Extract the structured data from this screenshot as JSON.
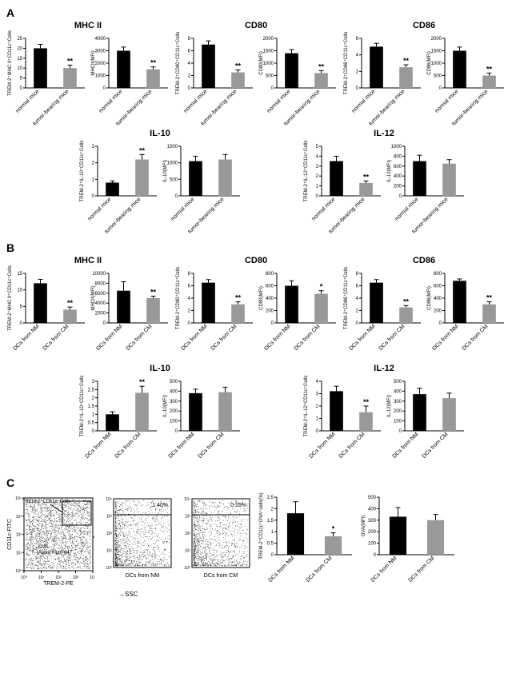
{
  "sections": {
    "A": {
      "row1": [
        {
          "title": "MHC II",
          "charts": [
            {
              "ylabel": "TREM-2⁺MHC II⁺CD11c⁺Cells",
              "ymax": 25,
              "ticks": [
                0,
                5,
                10,
                15,
                20,
                25
              ],
              "cats": [
                "normal mice",
                "tumor-bearing mice"
              ],
              "vals": [
                20,
                10
              ],
              "errs": [
                2,
                1.5
              ],
              "sigs": [
                "",
                "**"
              ],
              "colors": [
                "#000",
                "#999"
              ]
            },
            {
              "ylabel": "MHCII(MFI)",
              "ymax": 4000,
              "ticks": [
                0,
                1000,
                2000,
                3000,
                4000
              ],
              "cats": [
                "normal mice",
                "tumor-bearing mice"
              ],
              "vals": [
                3000,
                1500
              ],
              "errs": [
                300,
                200
              ],
              "sigs": [
                "",
                "**"
              ],
              "colors": [
                "#000",
                "#999"
              ]
            }
          ]
        },
        {
          "title": "CD80",
          "charts": [
            {
              "ylabel": "TREM-2⁺CD80⁺CD11c⁺Cells",
              "ymax": 8,
              "ticks": [
                0,
                2,
                4,
                6,
                8
              ],
              "cats": [
                "normal mice",
                "tumor-bearing mice"
              ],
              "vals": [
                7,
                2.5
              ],
              "errs": [
                0.6,
                0.4
              ],
              "sigs": [
                "",
                "**"
              ],
              "colors": [
                "#000",
                "#999"
              ]
            },
            {
              "ylabel": "CD80(MFI)",
              "ymax": 2000,
              "ticks": [
                0,
                500,
                1000,
                1500,
                2000
              ],
              "cats": [
                "normal mice",
                "tumor-bearing mice"
              ],
              "vals": [
                1400,
                600
              ],
              "errs": [
                150,
                100
              ],
              "sigs": [
                "",
                "**"
              ],
              "colors": [
                "#000",
                "#999"
              ]
            }
          ]
        },
        {
          "title": "CD86",
          "charts": [
            {
              "ylabel": "TREM-2⁺CD86⁺CD11c⁺Cells",
              "ymax": 6,
              "ticks": [
                0,
                2,
                4,
                6
              ],
              "cats": [
                "normal mice",
                "tumor-bearing mice"
              ],
              "vals": [
                5,
                2.5
              ],
              "errs": [
                0.4,
                0.3
              ],
              "sigs": [
                "",
                "**"
              ],
              "colors": [
                "#000",
                "#999"
              ]
            },
            {
              "ylabel": "CD86(MFI)",
              "ymax": 2000,
              "ticks": [
                0,
                500,
                1000,
                1500,
                2000
              ],
              "cats": [
                "normal mice",
                "tumor-bearing mice"
              ],
              "vals": [
                1500,
                500
              ],
              "errs": [
                150,
                100
              ],
              "sigs": [
                "",
                "**"
              ],
              "colors": [
                "#000",
                "#999"
              ]
            }
          ]
        }
      ],
      "row2": [
        {
          "title": "IL-10",
          "charts": [
            {
              "ylabel": "TREM-2⁺IL-10⁺CD11c⁺Cells",
              "ymax": 3,
              "ticks": [
                0,
                1,
                2,
                3
              ],
              "cats": [
                "normal mice",
                "tumor-bearing mice"
              ],
              "vals": [
                0.8,
                2.2
              ],
              "errs": [
                0.1,
                0.3
              ],
              "sigs": [
                "",
                "**"
              ],
              "colors": [
                "#000",
                "#999"
              ]
            },
            {
              "ylabel": "IL-10(MFI)",
              "ymax": 1500,
              "ticks": [
                0,
                500,
                1000,
                1500
              ],
              "cats": [
                "normal mice",
                "tumor-bearing mice"
              ],
              "vals": [
                1050,
                1100
              ],
              "errs": [
                150,
                150
              ],
              "sigs": [
                "",
                ""
              ],
              "colors": [
                "#000",
                "#999"
              ]
            }
          ]
        },
        {
          "title": "IL-12",
          "charts": [
            {
              "ylabel": "TREM-2⁺IL-12⁺CD11c⁺Cells",
              "ymax": 5,
              "ticks": [
                0,
                1,
                2,
                3,
                4,
                5
              ],
              "cats": [
                "normal mice",
                "tumor-bearing mice"
              ],
              "vals": [
                3.5,
                1.3
              ],
              "errs": [
                0.5,
                0.2
              ],
              "sigs": [
                "",
                "**"
              ],
              "colors": [
                "#000",
                "#999"
              ]
            },
            {
              "ylabel": "IL-12(MFI)",
              "ymax": 1000,
              "ticks": [
                0,
                200,
                400,
                600,
                800,
                1000
              ],
              "cats": [
                "normal mice",
                "tumor-bearing mice"
              ],
              "vals": [
                700,
                650
              ],
              "errs": [
                120,
                80
              ],
              "sigs": [
                "",
                ""
              ],
              "colors": [
                "#000",
                "#999"
              ]
            }
          ]
        }
      ]
    },
    "B": {
      "row1": [
        {
          "title": "MHC II",
          "charts": [
            {
              "ylabel": "TREM-2⁺MHC II⁺CD11c⁺Cells",
              "ymax": 15,
              "ticks": [
                0,
                5,
                10,
                15
              ],
              "cats": [
                "DCs from NM",
                "DCs from CM"
              ],
              "vals": [
                12,
                4
              ],
              "errs": [
                1.2,
                0.8
              ],
              "sigs": [
                "",
                "**"
              ],
              "colors": [
                "#000",
                "#999"
              ]
            },
            {
              "ylabel": "MHCII(MFI)",
              "ymax": 10000,
              "ticks": [
                0,
                2000,
                4000,
                6000,
                8000,
                10000
              ],
              "cats": [
                "DCs from NM",
                "DCs from CM"
              ],
              "vals": [
                6500,
                5000
              ],
              "errs": [
                1800,
                400
              ],
              "sigs": [
                "",
                "**"
              ],
              "colors": [
                "#000",
                "#999"
              ]
            }
          ]
        },
        {
          "title": "CD80",
          "charts": [
            {
              "ylabel": "TREM-2⁺CD80⁺CD11c⁺Cells",
              "ymax": 8,
              "ticks": [
                0,
                2,
                4,
                6,
                8
              ],
              "cats": [
                "DCs from NM",
                "DCs from CM"
              ],
              "vals": [
                6.5,
                3
              ],
              "errs": [
                0.5,
                0.4
              ],
              "sigs": [
                "",
                "**"
              ],
              "colors": [
                "#000",
                "#999"
              ]
            },
            {
              "ylabel": "CD80(MFI)",
              "ymax": 800,
              "ticks": [
                0,
                200,
                400,
                600,
                800
              ],
              "cats": [
                "DCs from NM",
                "DCs from CM"
              ],
              "vals": [
                600,
                470
              ],
              "errs": [
                80,
                50
              ],
              "sigs": [
                "",
                "*"
              ],
              "colors": [
                "#000",
                "#999"
              ]
            }
          ]
        },
        {
          "title": "CD86",
          "charts": [
            {
              "ylabel": "TREM-2⁺CD86⁺CD11c⁺Cells",
              "ymax": 8,
              "ticks": [
                0,
                2,
                4,
                6,
                8
              ],
              "cats": [
                "DCs from NM",
                "DCs from CM"
              ],
              "vals": [
                6.5,
                2.5
              ],
              "errs": [
                0.5,
                0.3
              ],
              "sigs": [
                "",
                "**"
              ],
              "colors": [
                "#000",
                "#999"
              ]
            },
            {
              "ylabel": "CD86(MFI)",
              "ymax": 800,
              "ticks": [
                0,
                200,
                400,
                600,
                800
              ],
              "cats": [
                "DCs from NM",
                "DCs from CM"
              ],
              "vals": [
                680,
                300
              ],
              "errs": [
                30,
                40
              ],
              "sigs": [
                "",
                "**"
              ],
              "colors": [
                "#000",
                "#999"
              ]
            }
          ]
        }
      ],
      "row2": [
        {
          "title": "IL-10",
          "charts": [
            {
              "ylabel": "TREM-2⁺IL-10⁺CD11c⁺Cells",
              "ymax": 3.0,
              "ticks": [
                0.0,
                0.5,
                1.0,
                1.5,
                2.0,
                2.5,
                3.0
              ],
              "cats": [
                "DCs from NM",
                "DCs from CM"
              ],
              "vals": [
                1.0,
                2.3
              ],
              "errs": [
                0.15,
                0.4
              ],
              "sigs": [
                "",
                "**"
              ],
              "colors": [
                "#000",
                "#999"
              ]
            },
            {
              "ylabel": "IL-10(MFI)",
              "ymax": 500,
              "ticks": [
                0,
                100,
                200,
                300,
                400,
                500
              ],
              "cats": [
                "DCs from NM",
                "DCs from CM"
              ],
              "vals": [
                380,
                390
              ],
              "errs": [
                40,
                50
              ],
              "sigs": [
                "",
                ""
              ],
              "colors": [
                "#000",
                "#999"
              ]
            }
          ]
        },
        {
          "title": "IL-12",
          "charts": [
            {
              "ylabel": "TREM-2⁺IL-12⁺CD11c⁺Cells",
              "ymax": 4,
              "ticks": [
                0,
                1,
                2,
                3,
                4
              ],
              "cats": [
                "DCs from NM",
                "DCs from CM"
              ],
              "vals": [
                3.2,
                1.5
              ],
              "errs": [
                0.4,
                0.5
              ],
              "sigs": [
                "",
                "**"
              ],
              "colors": [
                "#000",
                "#999"
              ]
            },
            {
              "ylabel": "IL-12(MFI)",
              "ymax": 500,
              "ticks": [
                0,
                100,
                200,
                300,
                400,
                500
              ],
              "cats": [
                "DCs from NM",
                "DCs from CM"
              ],
              "vals": [
                370,
                330
              ],
              "errs": [
                60,
                50
              ],
              "sigs": [
                "",
                ""
              ],
              "colors": [
                "#000",
                "#999"
              ]
            }
          ]
        }
      ]
    },
    "C": {
      "scatter_gate": {
        "xlabel": "TREM-2-PE",
        "ylabel": "CD11c-FITC",
        "gate_label": "TREM-2⁺CD11c⁺Cells",
        "ova_label": "OVA-Alexa Fluor 647"
      },
      "scatter_nm": {
        "title": "DCs from NM",
        "pct": "1.40%",
        "xlabel": "SSC"
      },
      "scatter_cm": {
        "title": "DCs from CM",
        "pct": "0.15%"
      },
      "bar1": {
        "ylabel": "TREM-2⁺CD11c⁺OVA⁺cells(%)",
        "ymax": 2.5,
        "ticks": [
          0.0,
          0.5,
          1.0,
          1.5,
          2.0,
          2.5
        ],
        "cats": [
          "DCs from NM",
          "DCs from CM"
        ],
        "vals": [
          1.8,
          0.8
        ],
        "errs": [
          0.5,
          0.15
        ],
        "sigs": [
          "",
          "*"
        ],
        "colors": [
          "#000",
          "#999"
        ]
      },
      "bar2": {
        "ylabel": "OVA(MFI)",
        "ymax": 500,
        "ticks": [
          0,
          100,
          200,
          300,
          400,
          500
        ],
        "cats": [
          "DCs from NM",
          "DCs from CM"
        ],
        "vals": [
          330,
          300
        ],
        "errs": [
          80,
          50
        ],
        "sigs": [
          "",
          ""
        ],
        "colors": [
          "#000",
          "#999"
        ]
      }
    }
  },
  "chart_style": {
    "axis_color": "#000",
    "axis_width": 1,
    "tick_len": 3,
    "bar_width": 0.45,
    "err_cap": 3,
    "tick_fontsize": 6,
    "ylabel_fontsize": 6,
    "cat_fontsize": 7,
    "sig_fontsize": 9
  }
}
